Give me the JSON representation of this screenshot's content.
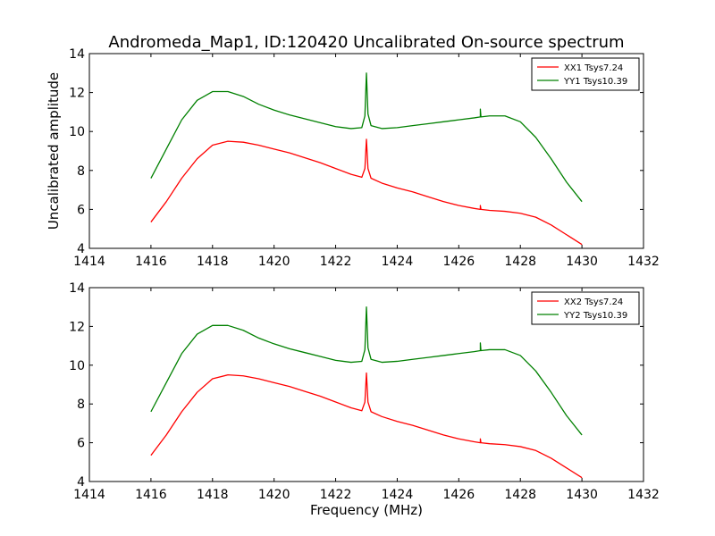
{
  "figure": {
    "title": "Andromeda_Map1, ID:120420 Uncalibrated On-source spectrum"
  },
  "chart_data": [
    {
      "type": "line",
      "title": "Andromeda_Map1, ID:120420 Uncalibrated On-source spectrum",
      "xlabel": "",
      "ylabel": "Uncalibrated amplitude",
      "xlim": [
        1414,
        1432
      ],
      "ylim": [
        4,
        14
      ],
      "xticks": [
        "1414",
        "1416",
        "1418",
        "1420",
        "1422",
        "1424",
        "1426",
        "1428",
        "1430",
        "1432"
      ],
      "yticks": [
        "4",
        "6",
        "8",
        "10",
        "12",
        "14"
      ],
      "legend_position": "top-right",
      "grid": false,
      "series": [
        {
          "name": "XX1 Tsys7.24",
          "color": "#ff0000",
          "points": [
            [
              1416.0,
              5.35
            ],
            [
              1416.5,
              6.4
            ],
            [
              1417.0,
              7.6
            ],
            [
              1417.5,
              8.6
            ],
            [
              1418.0,
              9.3
            ],
            [
              1418.5,
              9.5
            ],
            [
              1419.0,
              9.45
            ],
            [
              1419.5,
              9.3
            ],
            [
              1420.0,
              9.1
            ],
            [
              1420.5,
              8.9
            ],
            [
              1421.0,
              8.65
            ],
            [
              1421.5,
              8.4
            ],
            [
              1422.0,
              8.1
            ],
            [
              1422.5,
              7.8
            ],
            [
              1422.85,
              7.65
            ],
            [
              1422.95,
              8.1
            ],
            [
              1423.0,
              9.6
            ],
            [
              1423.05,
              8.1
            ],
            [
              1423.15,
              7.6
            ],
            [
              1423.5,
              7.35
            ],
            [
              1424.0,
              7.1
            ],
            [
              1424.5,
              6.9
            ],
            [
              1425.0,
              6.65
            ],
            [
              1425.5,
              6.4
            ],
            [
              1426.0,
              6.2
            ],
            [
              1426.5,
              6.05
            ],
            [
              1426.7,
              6.0
            ],
            [
              1426.7,
              6.2
            ],
            [
              1426.72,
              6.0
            ],
            [
              1427.0,
              5.95
            ],
            [
              1427.5,
              5.9
            ],
            [
              1428.0,
              5.8
            ],
            [
              1428.5,
              5.6
            ],
            [
              1429.0,
              5.2
            ],
            [
              1429.5,
              4.7
            ],
            [
              1430.0,
              4.2
            ]
          ]
        },
        {
          "name": "YY1 Tsys10.39",
          "color": "#008000",
          "points": [
            [
              1416.0,
              7.6
            ],
            [
              1416.5,
              9.1
            ],
            [
              1417.0,
              10.6
            ],
            [
              1417.5,
              11.6
            ],
            [
              1418.0,
              12.05
            ],
            [
              1418.5,
              12.05
            ],
            [
              1419.0,
              11.8
            ],
            [
              1419.5,
              11.4
            ],
            [
              1420.0,
              11.1
            ],
            [
              1420.5,
              10.85
            ],
            [
              1421.0,
              10.65
            ],
            [
              1421.5,
              10.45
            ],
            [
              1422.0,
              10.25
            ],
            [
              1422.5,
              10.15
            ],
            [
              1422.85,
              10.2
            ],
            [
              1422.95,
              10.8
            ],
            [
              1423.0,
              13.0
            ],
            [
              1423.05,
              10.9
            ],
            [
              1423.15,
              10.3
            ],
            [
              1423.5,
              10.15
            ],
            [
              1424.0,
              10.2
            ],
            [
              1424.5,
              10.3
            ],
            [
              1425.0,
              10.4
            ],
            [
              1425.5,
              10.5
            ],
            [
              1426.0,
              10.6
            ],
            [
              1426.5,
              10.7
            ],
            [
              1426.7,
              10.75
            ],
            [
              1426.7,
              11.15
            ],
            [
              1426.72,
              10.75
            ],
            [
              1427.0,
              10.8
            ],
            [
              1427.5,
              10.8
            ],
            [
              1428.0,
              10.5
            ],
            [
              1428.5,
              9.7
            ],
            [
              1429.0,
              8.6
            ],
            [
              1429.5,
              7.4
            ],
            [
              1430.0,
              6.4
            ]
          ]
        }
      ]
    },
    {
      "type": "line",
      "title": "",
      "xlabel": "Frequency (MHz)",
      "ylabel": "",
      "xlim": [
        1414,
        1432
      ],
      "ylim": [
        4,
        14
      ],
      "xticks": [
        "1414",
        "1416",
        "1418",
        "1420",
        "1422",
        "1424",
        "1426",
        "1428",
        "1430",
        "1432"
      ],
      "yticks": [
        "4",
        "6",
        "8",
        "10",
        "12",
        "14"
      ],
      "legend_position": "top-right",
      "grid": false,
      "series": [
        {
          "name": "XX2 Tsys7.24",
          "color": "#ff0000",
          "points": [
            [
              1416.0,
              5.35
            ],
            [
              1416.5,
              6.4
            ],
            [
              1417.0,
              7.6
            ],
            [
              1417.5,
              8.6
            ],
            [
              1418.0,
              9.3
            ],
            [
              1418.5,
              9.5
            ],
            [
              1419.0,
              9.45
            ],
            [
              1419.5,
              9.3
            ],
            [
              1420.0,
              9.1
            ],
            [
              1420.5,
              8.9
            ],
            [
              1421.0,
              8.65
            ],
            [
              1421.5,
              8.4
            ],
            [
              1422.0,
              8.1
            ],
            [
              1422.5,
              7.8
            ],
            [
              1422.85,
              7.65
            ],
            [
              1422.95,
              8.1
            ],
            [
              1423.0,
              9.6
            ],
            [
              1423.05,
              8.1
            ],
            [
              1423.15,
              7.6
            ],
            [
              1423.5,
              7.35
            ],
            [
              1424.0,
              7.1
            ],
            [
              1424.5,
              6.9
            ],
            [
              1425.0,
              6.65
            ],
            [
              1425.5,
              6.4
            ],
            [
              1426.0,
              6.2
            ],
            [
              1426.5,
              6.05
            ],
            [
              1426.7,
              6.0
            ],
            [
              1426.7,
              6.2
            ],
            [
              1426.72,
              6.0
            ],
            [
              1427.0,
              5.95
            ],
            [
              1427.5,
              5.9
            ],
            [
              1428.0,
              5.8
            ],
            [
              1428.5,
              5.6
            ],
            [
              1429.0,
              5.2
            ],
            [
              1429.5,
              4.7
            ],
            [
              1430.0,
              4.2
            ]
          ]
        },
        {
          "name": "YY2 Tsys10.39",
          "color": "#008000",
          "points": [
            [
              1416.0,
              7.6
            ],
            [
              1416.5,
              9.1
            ],
            [
              1417.0,
              10.6
            ],
            [
              1417.5,
              11.6
            ],
            [
              1418.0,
              12.05
            ],
            [
              1418.5,
              12.05
            ],
            [
              1419.0,
              11.8
            ],
            [
              1419.5,
              11.4
            ],
            [
              1420.0,
              11.1
            ],
            [
              1420.5,
              10.85
            ],
            [
              1421.0,
              10.65
            ],
            [
              1421.5,
              10.45
            ],
            [
              1422.0,
              10.25
            ],
            [
              1422.5,
              10.15
            ],
            [
              1422.85,
              10.2
            ],
            [
              1422.95,
              10.8
            ],
            [
              1423.0,
              13.0
            ],
            [
              1423.05,
              10.9
            ],
            [
              1423.15,
              10.3
            ],
            [
              1423.5,
              10.15
            ],
            [
              1424.0,
              10.2
            ],
            [
              1424.5,
              10.3
            ],
            [
              1425.0,
              10.4
            ],
            [
              1425.5,
              10.5
            ],
            [
              1426.0,
              10.6
            ],
            [
              1426.5,
              10.7
            ],
            [
              1426.7,
              10.75
            ],
            [
              1426.7,
              11.15
            ],
            [
              1426.72,
              10.75
            ],
            [
              1427.0,
              10.8
            ],
            [
              1427.5,
              10.8
            ],
            [
              1428.0,
              10.5
            ],
            [
              1428.5,
              9.7
            ],
            [
              1429.0,
              8.6
            ],
            [
              1429.5,
              7.4
            ],
            [
              1430.0,
              6.4
            ]
          ]
        }
      ]
    }
  ]
}
